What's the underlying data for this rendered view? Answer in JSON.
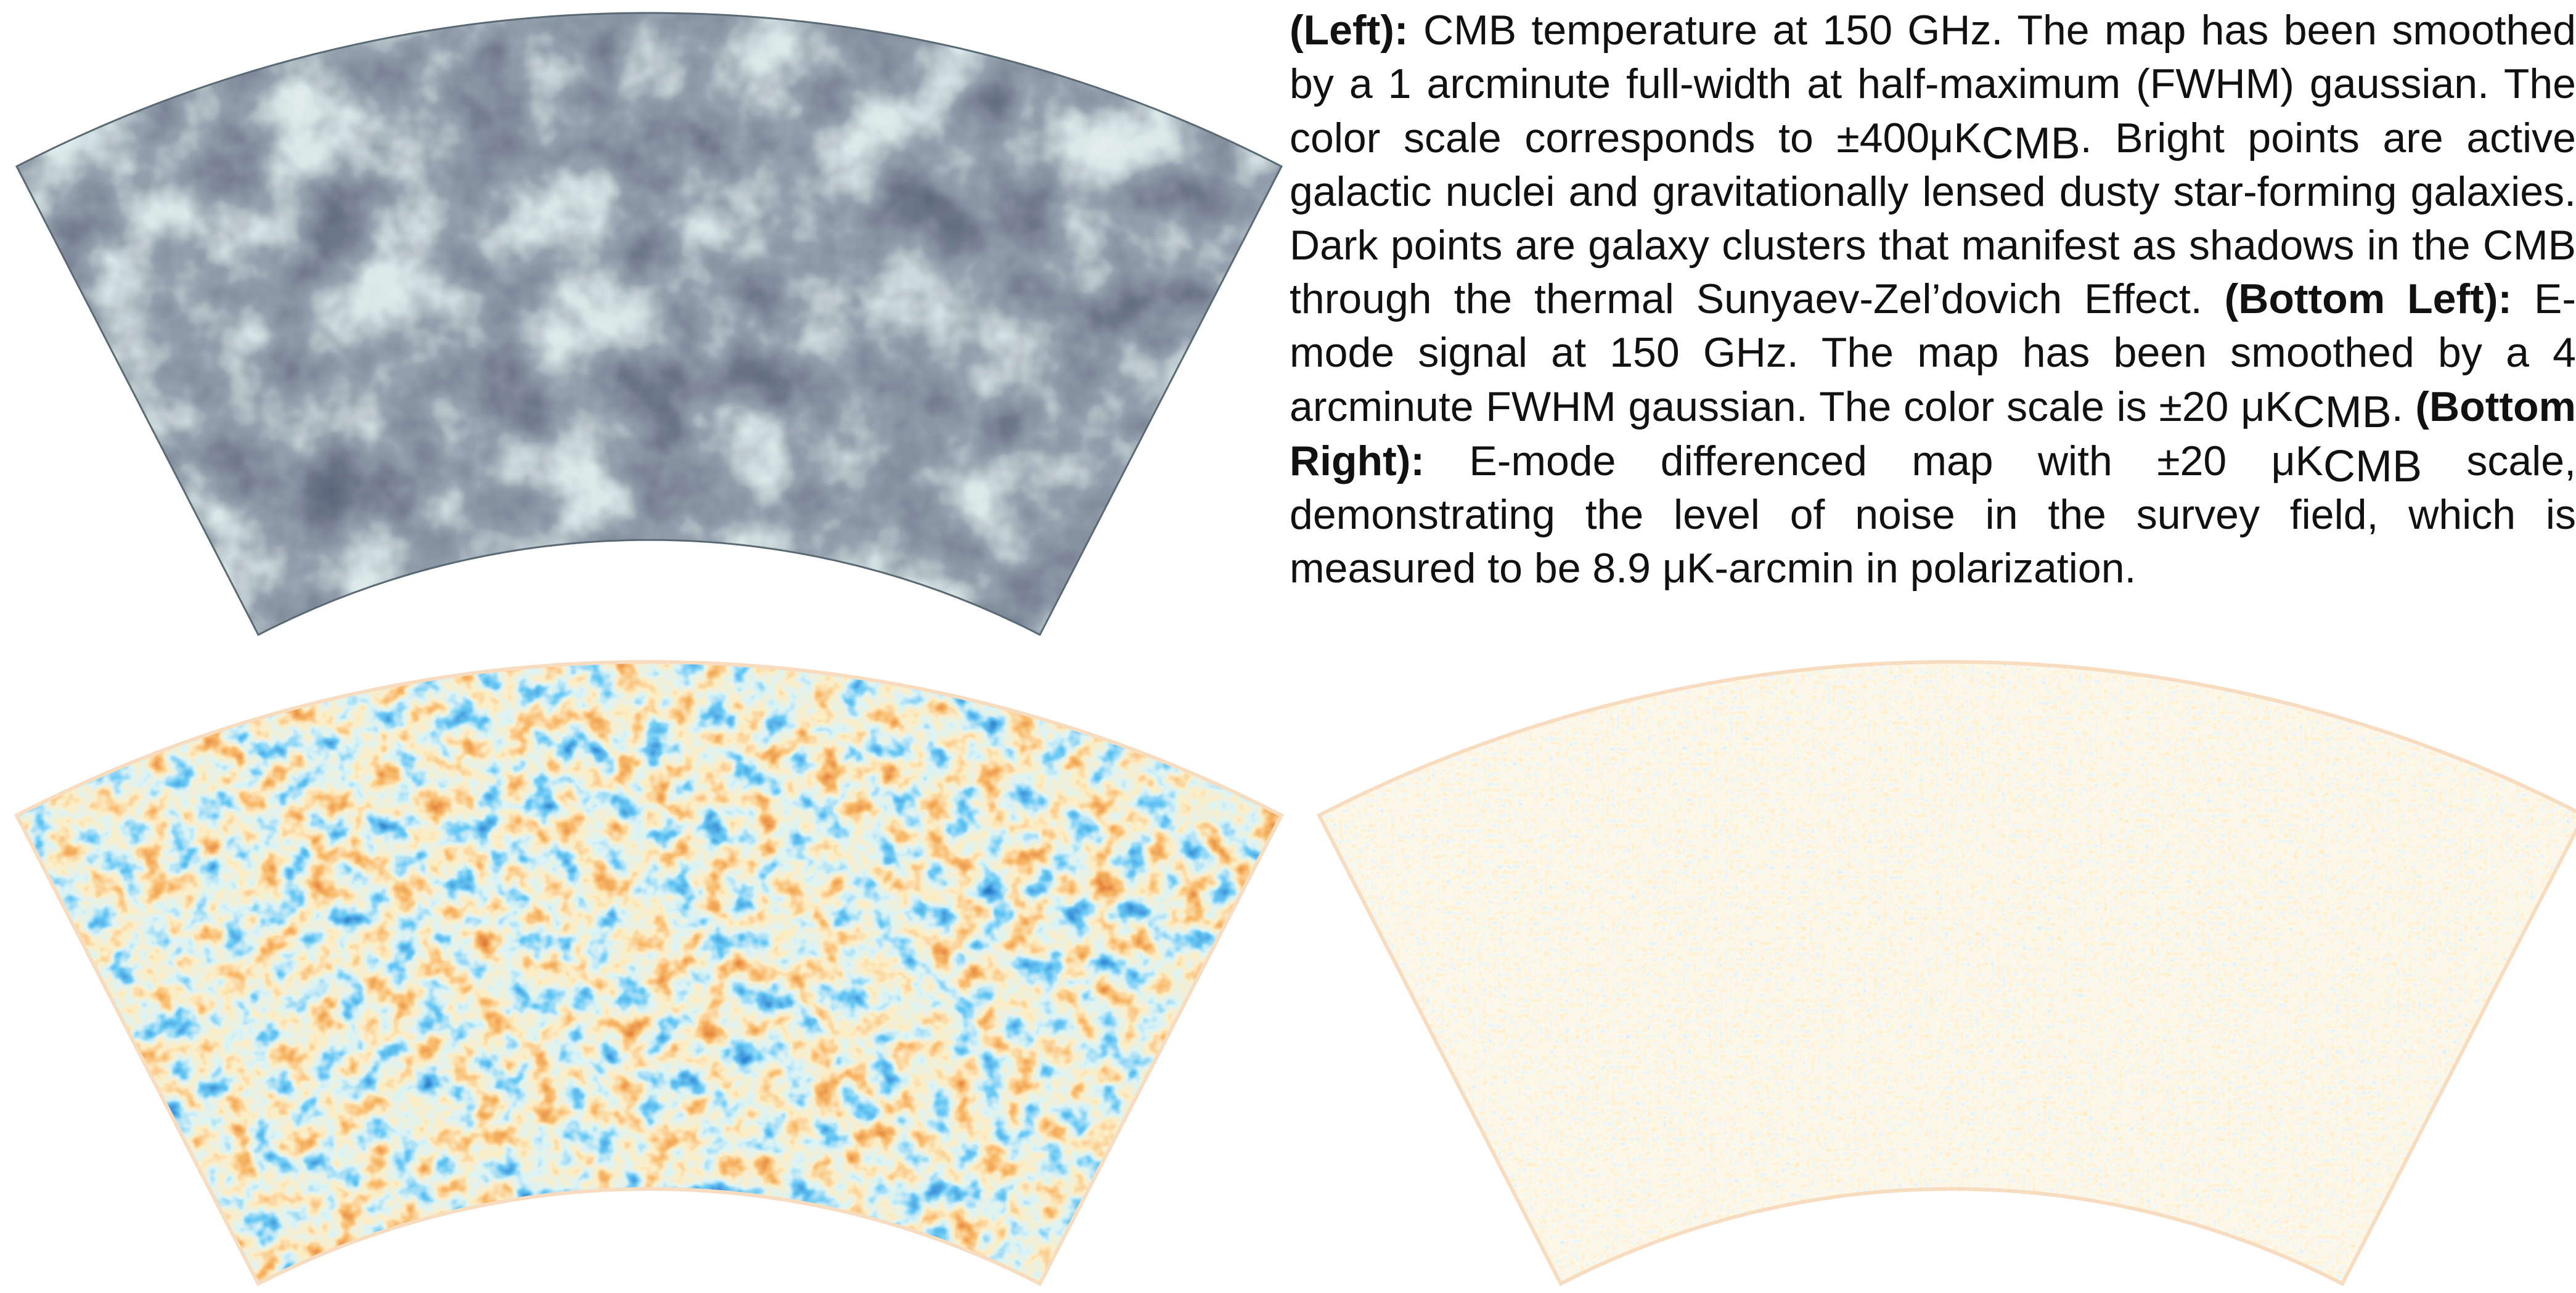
{
  "caption": {
    "left": {
      "label": "(Left):",
      "text_1": " CMB temperature at 150 GHz.  The map has been smoothed by a 1 arcminute full-width at half-maximum (FWHM) gaussian.  The color scale corresponds to ±400μK",
      "subscript": "CMB",
      "text_2": ". Bright points are active galactic nuclei and gravitationally lensed dusty star-forming galaxies. Dark points are galaxy clusters that manifest as shadows in the CMB through the thermal Sunyaev-Zel’dovich Effect. "
    },
    "bottom_left": {
      "label": "(Bottom Left):",
      "text_1": " E-mode signal at 150 GHz. The map has been smoothed by a 4 arcminute FWHM gaussian. The color scale is ±20 μK",
      "subscript": "CMB",
      "text_2": ". "
    },
    "bottom_right": {
      "label": "(Bottom Right):",
      "text_1": " E-mode differenced map with ±20 μK",
      "subscript": "CMB",
      "text_2": " scale, demonstrating the level of noise in the survey field, which is measured to be 8.9 μK-arcmin in polarization."
    }
  }
}
